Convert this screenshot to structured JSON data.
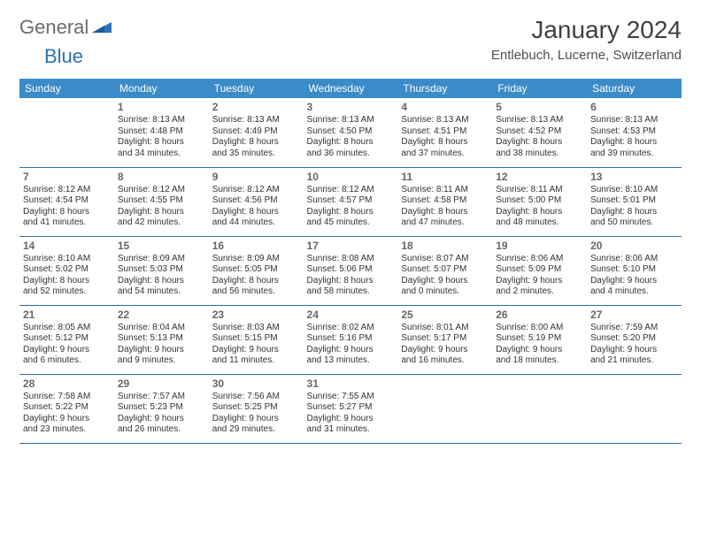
{
  "logo": {
    "text1": "General",
    "text2": "Blue"
  },
  "title": "January 2024",
  "location": "Entlebuch, Lucerne, Switzerland",
  "colors": {
    "header_bg": "#3b8bc9",
    "header_fg": "#ffffff",
    "row_border": "#2a6fa8",
    "logo_gray": "#6b6b6b",
    "logo_blue": "#2a72b5"
  },
  "daynames": [
    "Sunday",
    "Monday",
    "Tuesday",
    "Wednesday",
    "Thursday",
    "Friday",
    "Saturday"
  ],
  "start_offset": 1,
  "days": [
    {
      "n": "1",
      "sr": "Sunrise: 8:13 AM",
      "ss": "Sunset: 4:48 PM",
      "d1": "Daylight: 8 hours",
      "d2": "and 34 minutes."
    },
    {
      "n": "2",
      "sr": "Sunrise: 8:13 AM",
      "ss": "Sunset: 4:49 PM",
      "d1": "Daylight: 8 hours",
      "d2": "and 35 minutes."
    },
    {
      "n": "3",
      "sr": "Sunrise: 8:13 AM",
      "ss": "Sunset: 4:50 PM",
      "d1": "Daylight: 8 hours",
      "d2": "and 36 minutes."
    },
    {
      "n": "4",
      "sr": "Sunrise: 8:13 AM",
      "ss": "Sunset: 4:51 PM",
      "d1": "Daylight: 8 hours",
      "d2": "and 37 minutes."
    },
    {
      "n": "5",
      "sr": "Sunrise: 8:13 AM",
      "ss": "Sunset: 4:52 PM",
      "d1": "Daylight: 8 hours",
      "d2": "and 38 minutes."
    },
    {
      "n": "6",
      "sr": "Sunrise: 8:13 AM",
      "ss": "Sunset: 4:53 PM",
      "d1": "Daylight: 8 hours",
      "d2": "and 39 minutes."
    },
    {
      "n": "7",
      "sr": "Sunrise: 8:12 AM",
      "ss": "Sunset: 4:54 PM",
      "d1": "Daylight: 8 hours",
      "d2": "and 41 minutes."
    },
    {
      "n": "8",
      "sr": "Sunrise: 8:12 AM",
      "ss": "Sunset: 4:55 PM",
      "d1": "Daylight: 8 hours",
      "d2": "and 42 minutes."
    },
    {
      "n": "9",
      "sr": "Sunrise: 8:12 AM",
      "ss": "Sunset: 4:56 PM",
      "d1": "Daylight: 8 hours",
      "d2": "and 44 minutes."
    },
    {
      "n": "10",
      "sr": "Sunrise: 8:12 AM",
      "ss": "Sunset: 4:57 PM",
      "d1": "Daylight: 8 hours",
      "d2": "and 45 minutes."
    },
    {
      "n": "11",
      "sr": "Sunrise: 8:11 AM",
      "ss": "Sunset: 4:58 PM",
      "d1": "Daylight: 8 hours",
      "d2": "and 47 minutes."
    },
    {
      "n": "12",
      "sr": "Sunrise: 8:11 AM",
      "ss": "Sunset: 5:00 PM",
      "d1": "Daylight: 8 hours",
      "d2": "and 48 minutes."
    },
    {
      "n": "13",
      "sr": "Sunrise: 8:10 AM",
      "ss": "Sunset: 5:01 PM",
      "d1": "Daylight: 8 hours",
      "d2": "and 50 minutes."
    },
    {
      "n": "14",
      "sr": "Sunrise: 8:10 AM",
      "ss": "Sunset: 5:02 PM",
      "d1": "Daylight: 8 hours",
      "d2": "and 52 minutes."
    },
    {
      "n": "15",
      "sr": "Sunrise: 8:09 AM",
      "ss": "Sunset: 5:03 PM",
      "d1": "Daylight: 8 hours",
      "d2": "and 54 minutes."
    },
    {
      "n": "16",
      "sr": "Sunrise: 8:09 AM",
      "ss": "Sunset: 5:05 PM",
      "d1": "Daylight: 8 hours",
      "d2": "and 56 minutes."
    },
    {
      "n": "17",
      "sr": "Sunrise: 8:08 AM",
      "ss": "Sunset: 5:06 PM",
      "d1": "Daylight: 8 hours",
      "d2": "and 58 minutes."
    },
    {
      "n": "18",
      "sr": "Sunrise: 8:07 AM",
      "ss": "Sunset: 5:07 PM",
      "d1": "Daylight: 9 hours",
      "d2": "and 0 minutes."
    },
    {
      "n": "19",
      "sr": "Sunrise: 8:06 AM",
      "ss": "Sunset: 5:09 PM",
      "d1": "Daylight: 9 hours",
      "d2": "and 2 minutes."
    },
    {
      "n": "20",
      "sr": "Sunrise: 8:06 AM",
      "ss": "Sunset: 5:10 PM",
      "d1": "Daylight: 9 hours",
      "d2": "and 4 minutes."
    },
    {
      "n": "21",
      "sr": "Sunrise: 8:05 AM",
      "ss": "Sunset: 5:12 PM",
      "d1": "Daylight: 9 hours",
      "d2": "and 6 minutes."
    },
    {
      "n": "22",
      "sr": "Sunrise: 8:04 AM",
      "ss": "Sunset: 5:13 PM",
      "d1": "Daylight: 9 hours",
      "d2": "and 9 minutes."
    },
    {
      "n": "23",
      "sr": "Sunrise: 8:03 AM",
      "ss": "Sunset: 5:15 PM",
      "d1": "Daylight: 9 hours",
      "d2": "and 11 minutes."
    },
    {
      "n": "24",
      "sr": "Sunrise: 8:02 AM",
      "ss": "Sunset: 5:16 PM",
      "d1": "Daylight: 9 hours",
      "d2": "and 13 minutes."
    },
    {
      "n": "25",
      "sr": "Sunrise: 8:01 AM",
      "ss": "Sunset: 5:17 PM",
      "d1": "Daylight: 9 hours",
      "d2": "and 16 minutes."
    },
    {
      "n": "26",
      "sr": "Sunrise: 8:00 AM",
      "ss": "Sunset: 5:19 PM",
      "d1": "Daylight: 9 hours",
      "d2": "and 18 minutes."
    },
    {
      "n": "27",
      "sr": "Sunrise: 7:59 AM",
      "ss": "Sunset: 5:20 PM",
      "d1": "Daylight: 9 hours",
      "d2": "and 21 minutes."
    },
    {
      "n": "28",
      "sr": "Sunrise: 7:58 AM",
      "ss": "Sunset: 5:22 PM",
      "d1": "Daylight: 9 hours",
      "d2": "and 23 minutes."
    },
    {
      "n": "29",
      "sr": "Sunrise: 7:57 AM",
      "ss": "Sunset: 5:23 PM",
      "d1": "Daylight: 9 hours",
      "d2": "and 26 minutes."
    },
    {
      "n": "30",
      "sr": "Sunrise: 7:56 AM",
      "ss": "Sunset: 5:25 PM",
      "d1": "Daylight: 9 hours",
      "d2": "and 29 minutes."
    },
    {
      "n": "31",
      "sr": "Sunrise: 7:55 AM",
      "ss": "Sunset: 5:27 PM",
      "d1": "Daylight: 9 hours",
      "d2": "and 31 minutes."
    }
  ]
}
